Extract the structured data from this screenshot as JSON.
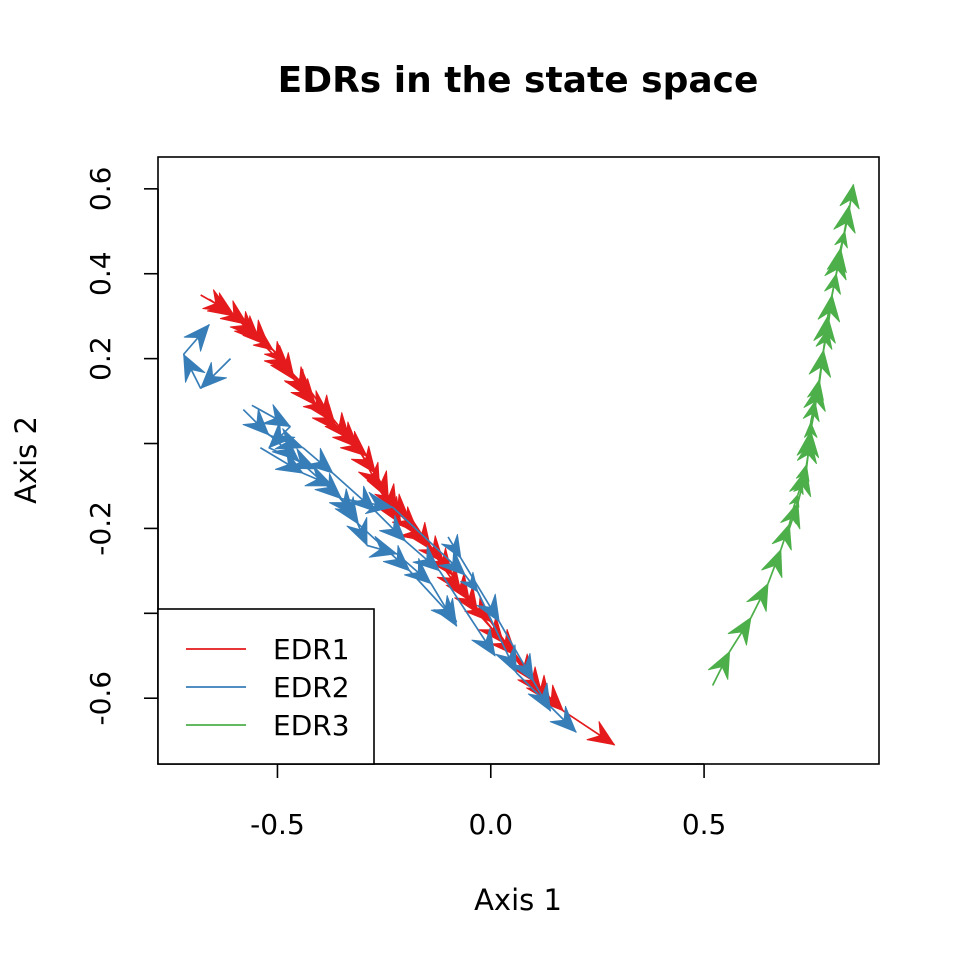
{
  "chart_data": {
    "type": "line",
    "title": "EDRs in the state space",
    "xlabel": "Axis 1",
    "ylabel": "Axis 2",
    "xlim": [
      -0.78,
      0.91
    ],
    "ylim": [
      -0.755,
      0.675
    ],
    "x_ticks": [
      {
        "value": -0.5,
        "label": "-0.5"
      },
      {
        "value": 0.0,
        "label": "0.0"
      },
      {
        "value": 0.5,
        "label": "0.5"
      }
    ],
    "y_ticks": [
      {
        "value": 0.6,
        "label": "0.6"
      },
      {
        "value": 0.4,
        "label": "0.4"
      },
      {
        "value": 0.2,
        "label": "0.2"
      },
      {
        "value": 0.0,
        "label": ""
      },
      {
        "value": -0.2,
        "label": "-0.2"
      },
      {
        "value": -0.4,
        "label": ""
      },
      {
        "value": -0.6,
        "label": "-0.6"
      }
    ],
    "grid": false,
    "legend_position": "bottom-left",
    "colors": {
      "EDR1": "#E41A1C",
      "EDR2": "#377EB8",
      "EDR3": "#4DAF4A"
    },
    "series": [
      {
        "name": "EDR1",
        "color": "#E41A1C",
        "trajectories": [
          [
            [
              -0.68,
              0.35
            ],
            [
              -0.61,
              0.31
            ],
            [
              -0.55,
              0.25
            ],
            [
              -0.51,
              0.22
            ],
            [
              -0.46,
              0.15
            ],
            [
              -0.41,
              0.09
            ],
            [
              -0.36,
              0.03
            ],
            [
              -0.29,
              -0.03
            ],
            [
              -0.24,
              -0.13
            ],
            [
              -0.19,
              -0.18
            ],
            [
              -0.14,
              -0.25
            ],
            [
              -0.07,
              -0.35
            ],
            [
              0.0,
              -0.42
            ],
            [
              0.1,
              -0.56
            ],
            [
              0.17,
              -0.63
            ],
            [
              0.29,
              -0.71
            ]
          ],
          [
            [
              -0.64,
              0.33
            ],
            [
              -0.57,
              0.28
            ],
            [
              -0.52,
              0.23
            ],
            [
              -0.48,
              0.19
            ],
            [
              -0.43,
              0.11
            ],
            [
              -0.38,
              0.07
            ],
            [
              -0.33,
              0.01
            ],
            [
              -0.27,
              -0.07
            ],
            [
              -0.22,
              -0.16
            ],
            [
              -0.17,
              -0.21
            ],
            [
              -0.11,
              -0.28
            ],
            [
              -0.05,
              -0.37
            ],
            [
              0.03,
              -0.47
            ],
            [
              0.12,
              -0.59
            ]
          ],
          [
            [
              -0.66,
              0.34
            ],
            [
              -0.6,
              0.3
            ],
            [
              -0.54,
              0.24
            ],
            [
              -0.47,
              0.17
            ],
            [
              -0.42,
              0.12
            ],
            [
              -0.37,
              0.05
            ],
            [
              -0.31,
              -0.01
            ],
            [
              -0.26,
              -0.11
            ],
            [
              -0.21,
              -0.19
            ],
            [
              -0.15,
              -0.23
            ],
            [
              -0.09,
              -0.31
            ],
            [
              -0.03,
              -0.4
            ],
            [
              0.06,
              -0.5
            ],
            [
              0.14,
              -0.61
            ]
          ]
        ]
      },
      {
        "name": "EDR2",
        "color": "#377EB8",
        "trajectories": [
          [
            [
              -0.61,
              0.2
            ],
            [
              -0.68,
              0.13
            ],
            [
              -0.72,
              0.21
            ],
            [
              -0.66,
              0.28
            ]
          ],
          [
            [
              -0.56,
              0.09
            ],
            [
              -0.47,
              0.04
            ],
            [
              -0.52,
              -0.01
            ],
            [
              -0.41,
              -0.06
            ],
            [
              -0.32,
              -0.17
            ],
            [
              -0.29,
              -0.24
            ],
            [
              -0.22,
              -0.26
            ],
            [
              -0.14,
              -0.33
            ],
            [
              -0.08,
              -0.43
            ]
          ],
          [
            [
              -0.58,
              0.08
            ],
            [
              -0.52,
              0.02
            ],
            [
              -0.44,
              -0.01
            ],
            [
              -0.37,
              -0.07
            ],
            [
              -0.27,
              -0.16
            ],
            [
              -0.2,
              -0.23
            ],
            [
              -0.12,
              -0.3
            ],
            [
              0.01,
              -0.5
            ]
          ],
          [
            [
              -0.53,
              0.03
            ],
            [
              -0.45,
              -0.04
            ],
            [
              -0.35,
              -0.13
            ],
            [
              -0.23,
              -0.15
            ],
            [
              -0.06,
              -0.31
            ],
            [
              -0.03,
              -0.35
            ],
            [
              0.06,
              -0.54
            ],
            [
              0.2,
              -0.68
            ]
          ],
          [
            [
              -0.54,
              -0.01
            ],
            [
              -0.44,
              -0.07
            ],
            [
              -0.37,
              -0.1
            ],
            [
              -0.31,
              -0.19
            ],
            [
              -0.19,
              -0.3
            ],
            [
              -0.08,
              -0.42
            ]
          ],
          [
            [
              -0.1,
              -0.22
            ],
            [
              -0.07,
              -0.27
            ],
            [
              0.02,
              -0.42
            ],
            [
              0.1,
              -0.56
            ],
            [
              0.14,
              -0.63
            ]
          ]
        ]
      },
      {
        "name": "EDR3",
        "color": "#4DAF4A",
        "trajectories": [
          [
            [
              0.52,
              -0.57
            ],
            [
              0.56,
              -0.49
            ],
            [
              0.61,
              -0.41
            ],
            [
              0.65,
              -0.33
            ],
            [
              0.68,
              -0.25
            ],
            [
              0.7,
              -0.19
            ],
            [
              0.71,
              -0.15
            ],
            [
              0.72,
              -0.12
            ],
            [
              0.73,
              -0.09
            ],
            [
              0.74,
              -0.05
            ],
            [
              0.75,
              0.01
            ],
            [
              0.75,
              0.05
            ],
            [
              0.76,
              0.1
            ],
            [
              0.77,
              0.15
            ],
            [
              0.78,
              0.22
            ],
            [
              0.79,
              0.27
            ],
            [
              0.8,
              0.35
            ],
            [
              0.81,
              0.4
            ],
            [
              0.82,
              0.46
            ],
            [
              0.83,
              0.5
            ],
            [
              0.84,
              0.55
            ],
            [
              0.85,
              0.61
            ]
          ],
          [
            [
              0.7,
              -0.2
            ],
            [
              0.72,
              -0.14
            ],
            [
              0.74,
              -0.06
            ],
            [
              0.75,
              0.03
            ],
            [
              0.77,
              0.14
            ],
            [
              0.79,
              0.3
            ],
            [
              0.82,
              0.45
            ],
            [
              0.84,
              0.56
            ]
          ]
        ]
      }
    ]
  }
}
